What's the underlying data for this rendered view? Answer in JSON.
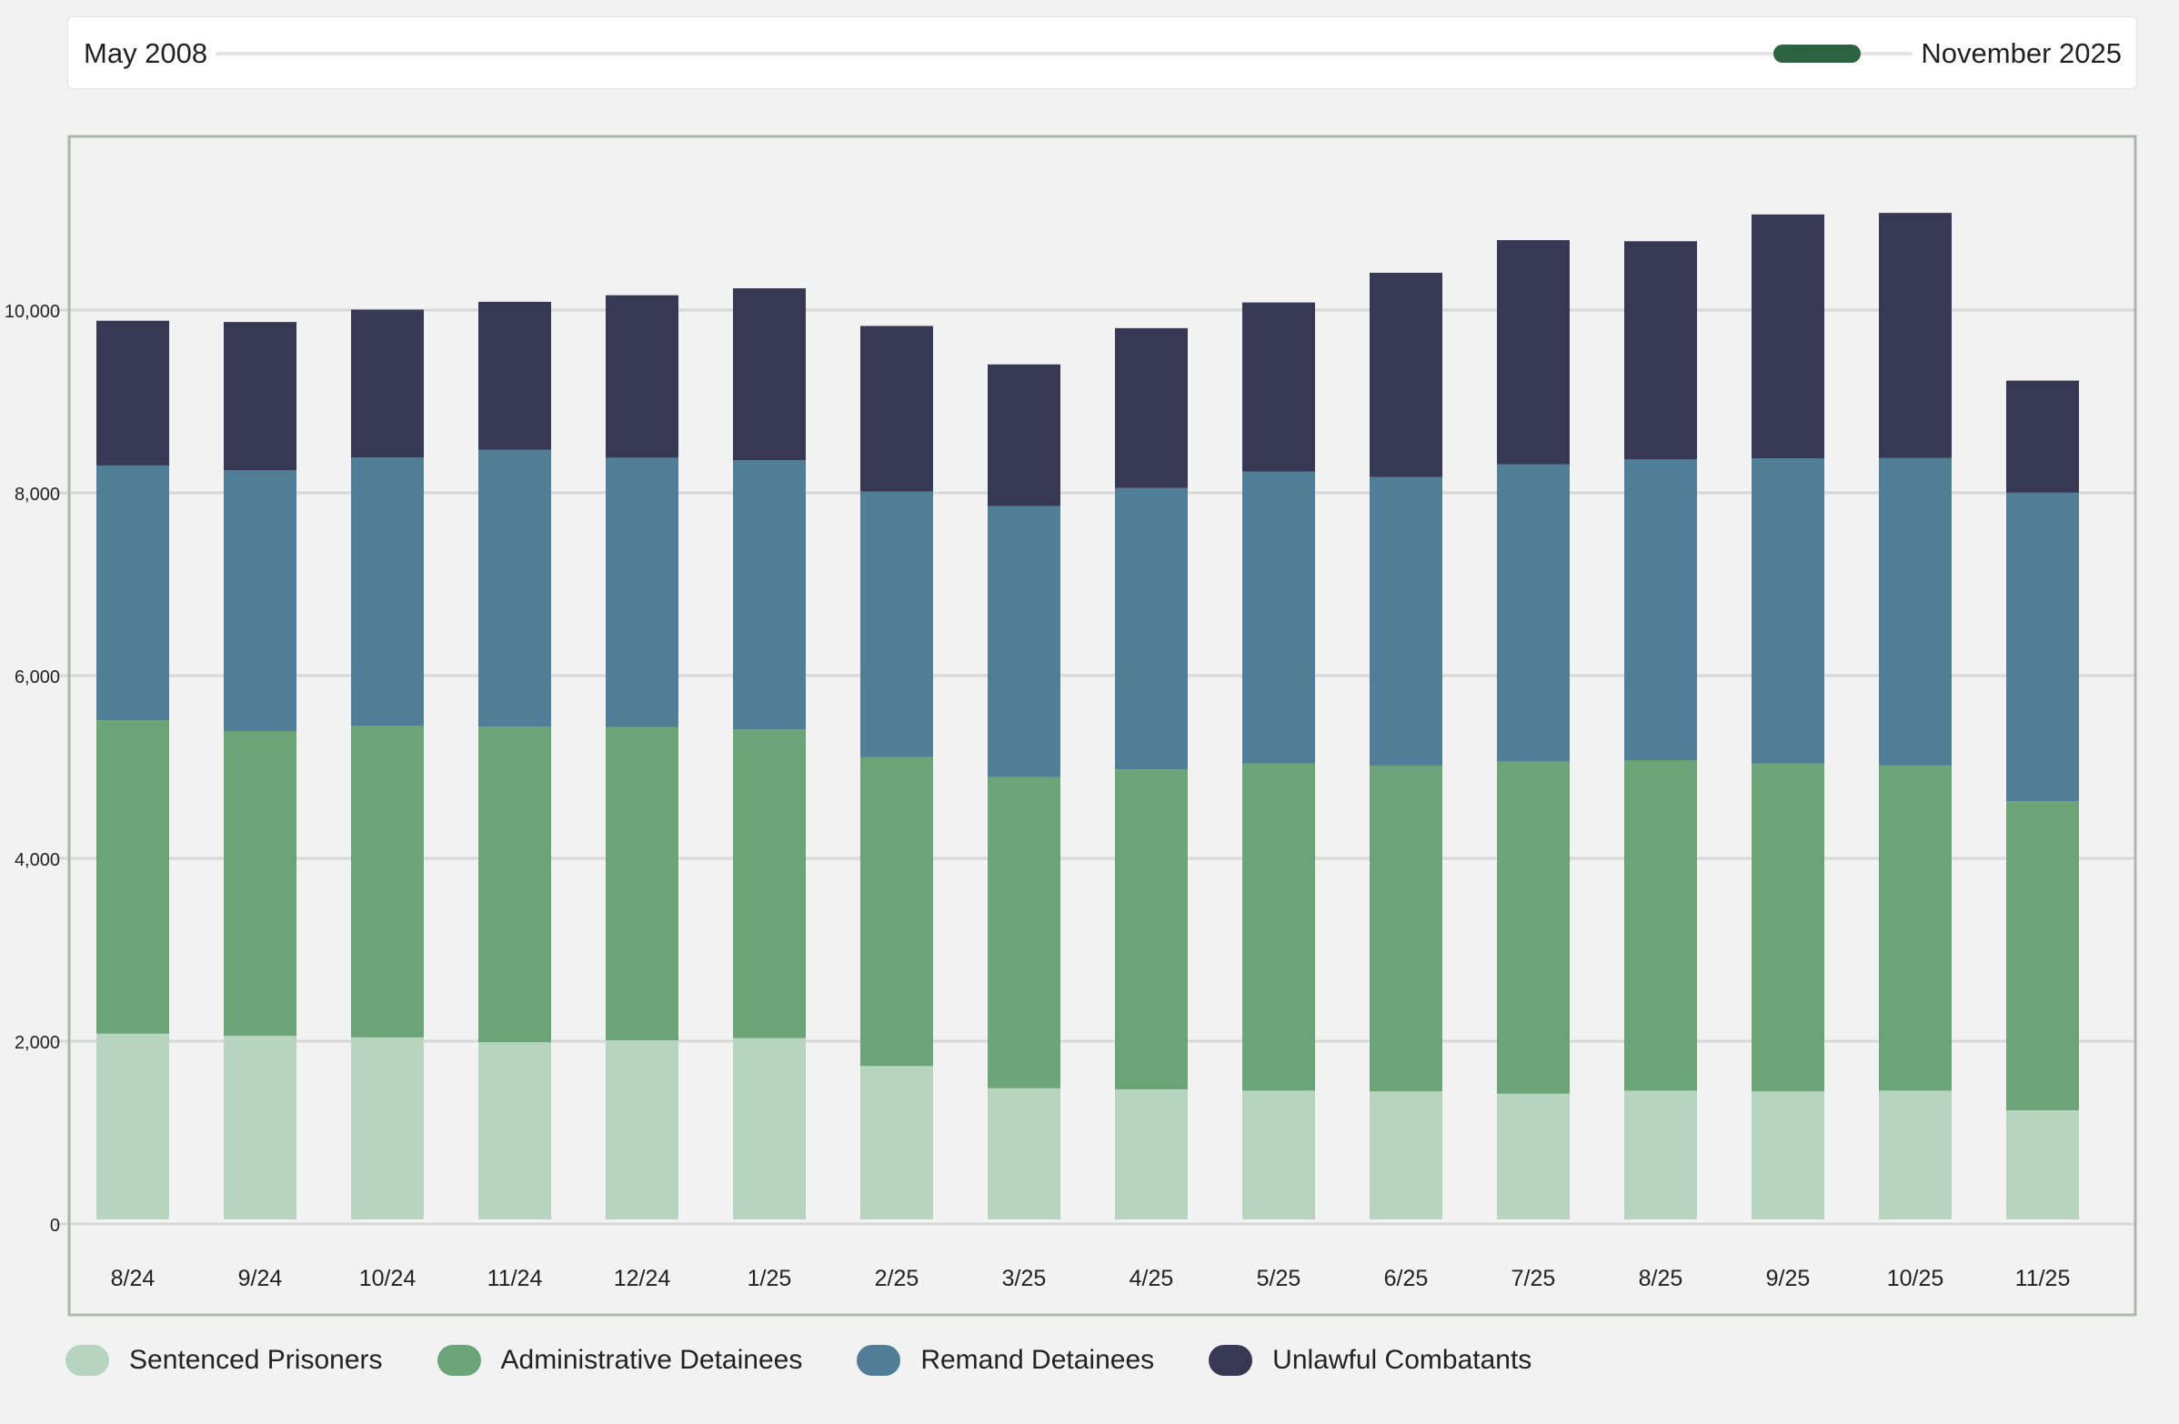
{
  "range": {
    "start_label": "May 2008",
    "end_label": "November 2025",
    "thumb_color": "#2c6340"
  },
  "colors": {
    "sentenced": "#b7d4be",
    "administrative": "#6ba577",
    "remand": "#507e96",
    "unlawful": "#373853",
    "grid": "#d8d8d8",
    "frame": "#a9b7ad"
  },
  "legend": [
    {
      "label": "Sentenced Prisoners",
      "color": "#b7d4be",
      "icon": "sentenced-swatch"
    },
    {
      "label": "Administrative Detainees",
      "color": "#6ba577",
      "icon": "administrative-swatch"
    },
    {
      "label": "Remand Detainees",
      "color": "#507e96",
      "icon": "remand-swatch"
    },
    {
      "label": "Unlawful Combatants",
      "color": "#373853",
      "icon": "unlawful-swatch"
    }
  ],
  "chart_data": {
    "type": "bar",
    "stacked": true,
    "categories": [
      "8/24",
      "9/24",
      "10/24",
      "11/24",
      "12/24",
      "1/25",
      "2/25",
      "3/25",
      "4/25",
      "5/25",
      "6/25",
      "7/25",
      "8/25",
      "9/25",
      "10/25",
      "11/25"
    ],
    "series": [
      {
        "name": "Sentenced Prisoners",
        "color": "#b7d4be",
        "values": [
          2081,
          2059,
          2042,
          1988,
          2010,
          2033,
          1728,
          1485,
          1473,
          1459,
          1450,
          1425,
          1459,
          1450,
          1459,
          1244
        ]
      },
      {
        "name": "Administrative Detainees",
        "color": "#6ba577",
        "values": [
          3429,
          3334,
          3407,
          3454,
          3428,
          3378,
          3380,
          3406,
          3500,
          3578,
          3565,
          3636,
          3615,
          3587,
          3558,
          3381
        ]
      },
      {
        "name": "Remand Detainees",
        "color": "#507e96",
        "values": [
          2789,
          2853,
          2938,
          3030,
          2946,
          2946,
          2907,
          2965,
          3079,
          3196,
          3158,
          3252,
          3294,
          3340,
          3363,
          3376
        ]
      },
      {
        "name": "Unlawful Combatants",
        "color": "#373853",
        "values": [
          1584,
          1623,
          1618,
          1618,
          1778,
          1881,
          1811,
          1549,
          1750,
          1850,
          2235,
          2452,
          2385,
          2669,
          2683,
          1227
        ]
      }
    ],
    "yticks": [
      0,
      2000,
      4000,
      6000,
      8000,
      10000
    ],
    "ytick_labels": [
      "0",
      "2,000",
      "4,000",
      "6,000",
      "8,000",
      "10,000"
    ],
    "ylim": [
      0,
      11900
    ],
    "grid": true,
    "legend_position": "bottom-left"
  }
}
